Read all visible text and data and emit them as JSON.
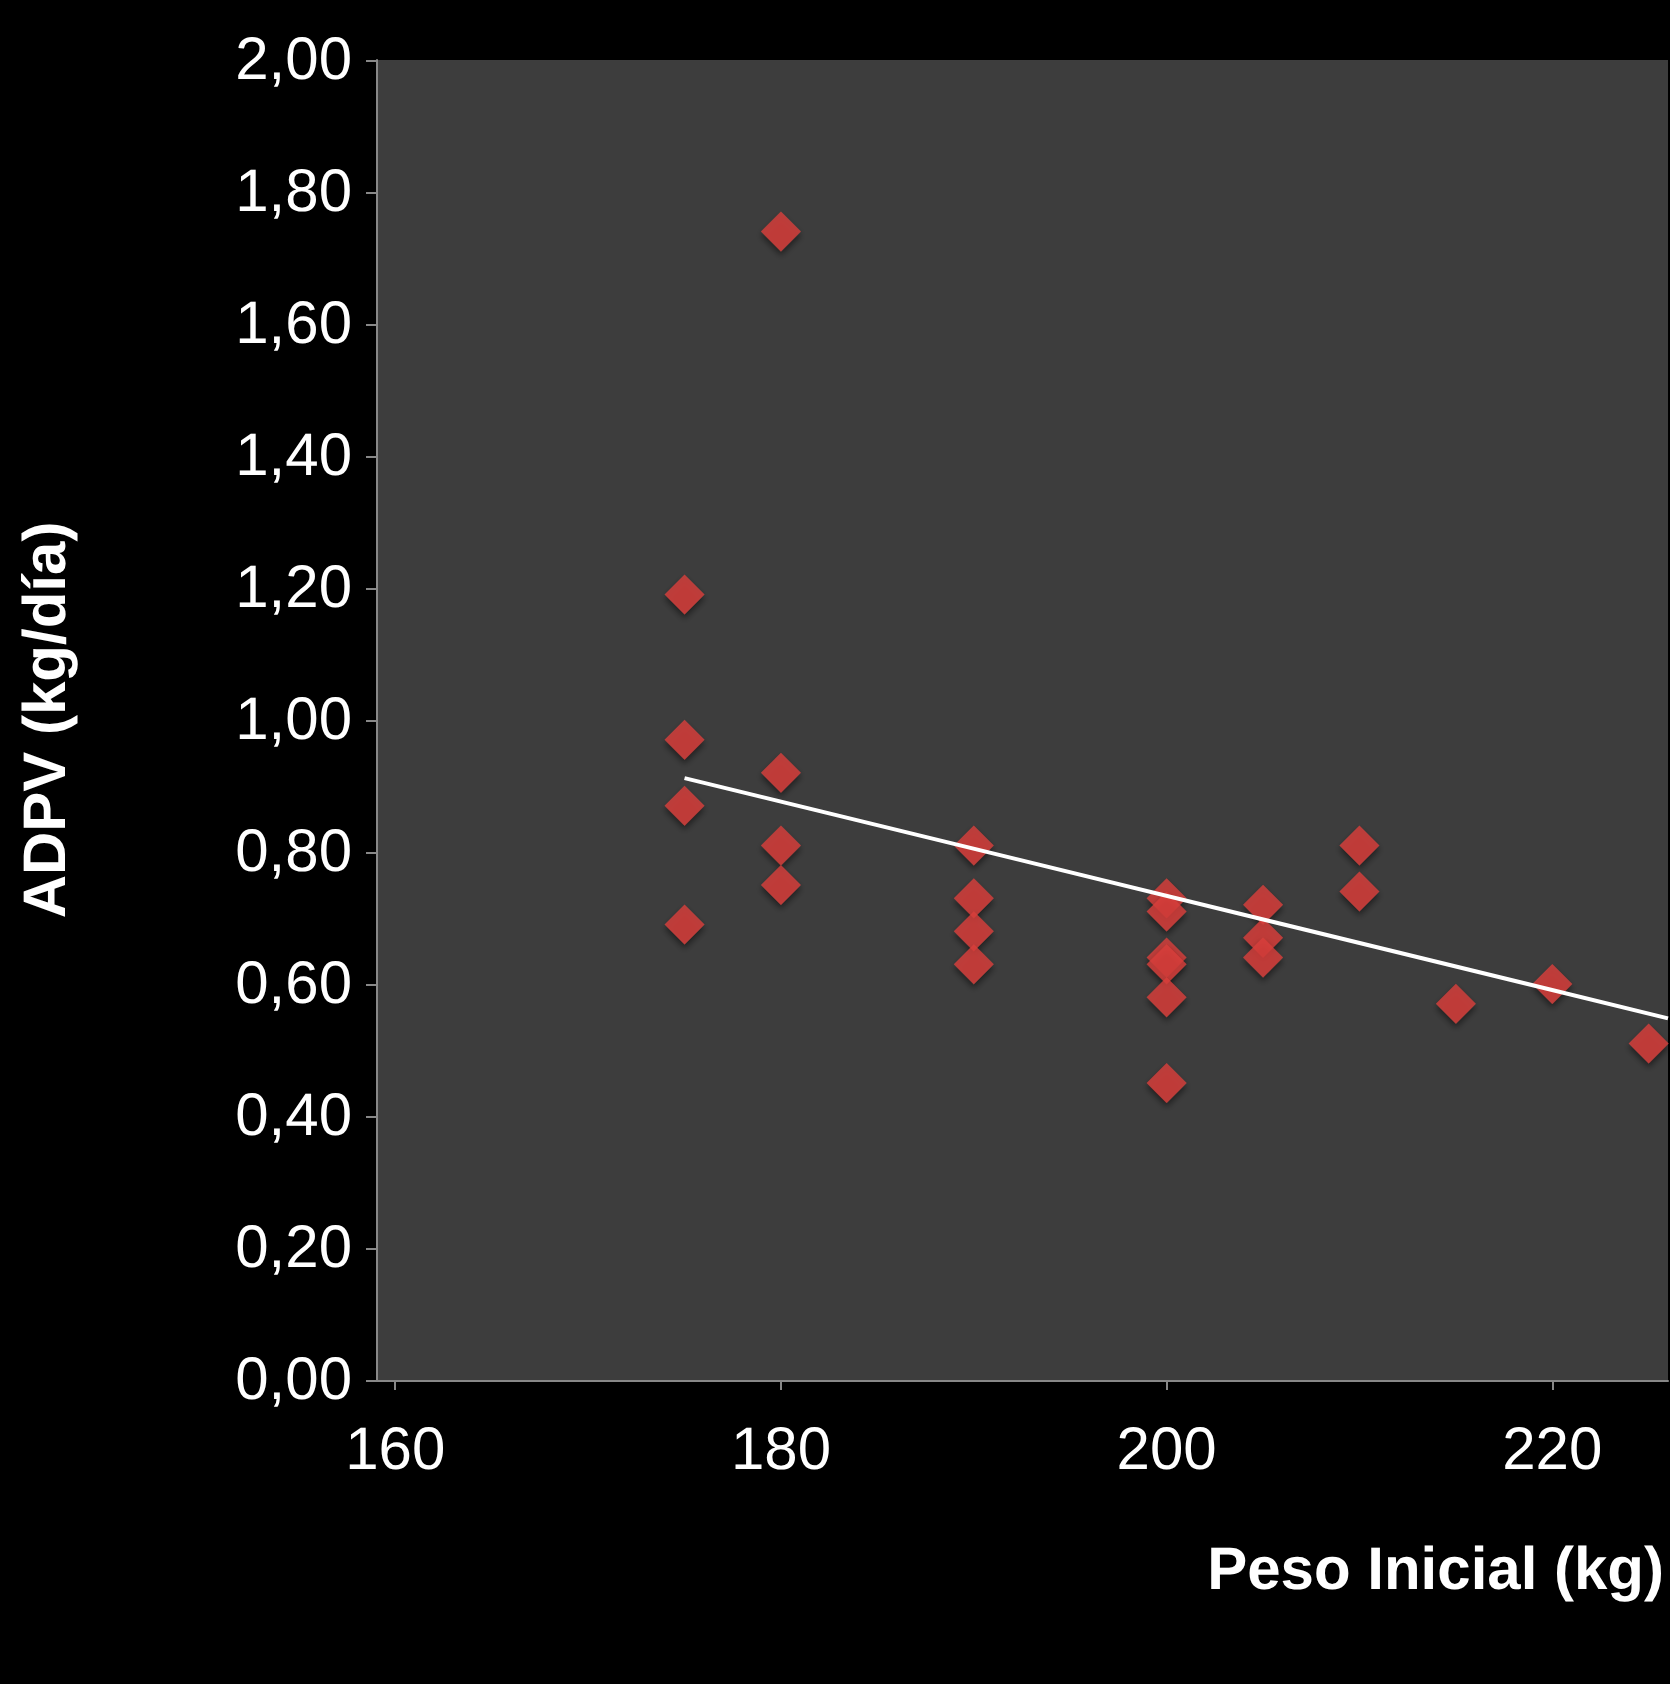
{
  "chart_data": {
    "type": "scatter",
    "xlabel": "Peso Inicial (kg)",
    "ylabel": "ADPV (kg/día)",
    "xlim": [
      159,
      226
    ],
    "xticks": [
      160,
      180,
      200,
      220
    ],
    "ylim": [
      0,
      2
    ],
    "yticks": [
      {
        "value": 0,
        "label": "0,00"
      },
      {
        "value": 0.2,
        "label": "0,20"
      },
      {
        "value": 0.4,
        "label": "0,40"
      },
      {
        "value": 0.6,
        "label": "0,60"
      },
      {
        "value": 0.8,
        "label": "0,80"
      },
      {
        "value": 1,
        "label": "1,00"
      },
      {
        "value": 1.2,
        "label": "1,20"
      },
      {
        "value": 1.4,
        "label": "1,40"
      },
      {
        "value": 1.6,
        "label": "1,60"
      },
      {
        "value": 1.8,
        "label": "1,80"
      },
      {
        "value": 2,
        "label": "2,00"
      }
    ],
    "grid": false,
    "marker": "diamond",
    "series": [
      {
        "color": "#d9403c",
        "x": [
          175,
          175,
          175,
          175,
          180,
          180,
          180,
          180,
          190,
          190,
          190,
          190,
          200,
          200,
          200,
          200,
          200,
          200,
          205,
          205,
          205,
          210,
          210,
          215,
          220,
          225
        ],
        "values": [
          1.19,
          0.97,
          0.87,
          0.69,
          1.74,
          0.92,
          0.81,
          0.75,
          0.81,
          0.73,
          0.68,
          0.63,
          0.73,
          0.71,
          0.64,
          0.63,
          0.58,
          0.45,
          0.72,
          0.67,
          0.64,
          0.81,
          0.74,
          0.57,
          0.6,
          0.51
        ]
      },
      {
        "type": "line",
        "color": "#ffffff",
        "x": [
          175,
          226
        ],
        "values": [
          0.912,
          0.548
        ],
        "marker": "none",
        "line_style": "solid"
      }
    ]
  }
}
